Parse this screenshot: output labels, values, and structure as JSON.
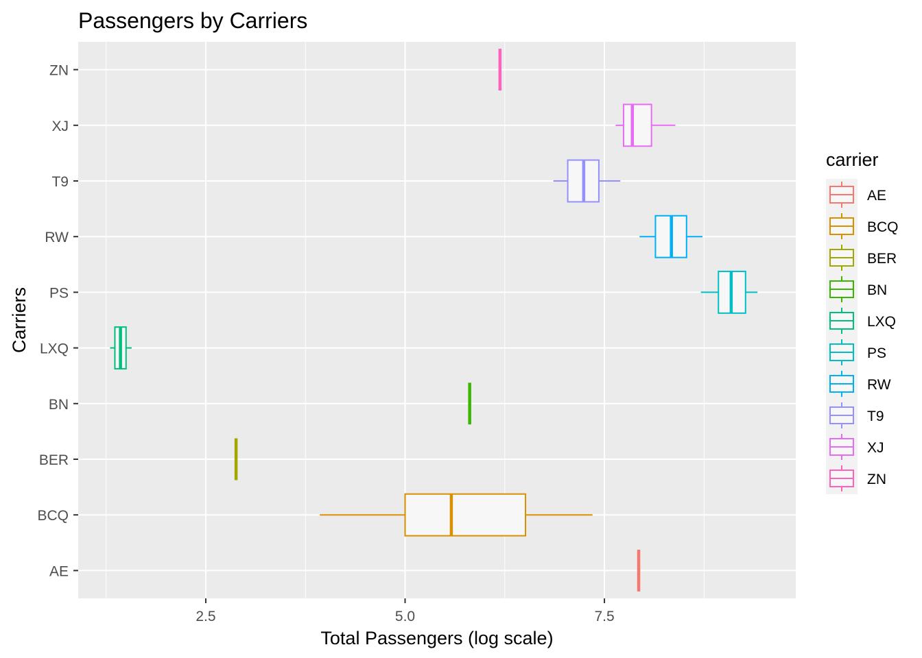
{
  "chart_data": {
    "type": "boxplot",
    "title": "Passengers by Carriers",
    "xlabel": "Total Passengers (log scale)",
    "ylabel": "Carriers",
    "xlim": [
      0.9,
      9.9
    ],
    "x_ticks": [
      2.5,
      5.0,
      7.5
    ],
    "x_tick_labels": [
      "2.5",
      "5.0",
      "7.5"
    ],
    "grid": true,
    "orientation": "horizontal",
    "legend": {
      "title": "carrier",
      "position": "right",
      "entries": [
        "AE",
        "BCQ",
        "BER",
        "BN",
        "LXQ",
        "PS",
        "RW",
        "T9",
        "XJ",
        "ZN"
      ]
    },
    "categories": [
      "AE",
      "BCQ",
      "BER",
      "BN",
      "LXQ",
      "PS",
      "RW",
      "T9",
      "XJ",
      "ZN"
    ],
    "series": [
      {
        "category": "AE",
        "min": 7.93,
        "q1": 7.93,
        "median": 7.93,
        "q3": 7.93,
        "max": 7.93,
        "color": "#F8766D"
      },
      {
        "category": "BCQ",
        "min": 3.93,
        "q1": 5.0,
        "median": 5.58,
        "q3": 6.51,
        "max": 7.35,
        "color": "#D89000"
      },
      {
        "category": "BER",
        "min": 2.88,
        "q1": 2.88,
        "median": 2.88,
        "q3": 2.88,
        "max": 2.88,
        "color": "#A3A500"
      },
      {
        "category": "BN",
        "min": 5.81,
        "q1": 5.81,
        "median": 5.81,
        "q3": 5.81,
        "max": 5.81,
        "color": "#39B600"
      },
      {
        "category": "LXQ",
        "min": 1.3,
        "q1": 1.36,
        "median": 1.43,
        "q3": 1.5,
        "max": 1.57,
        "color": "#00BF7D"
      },
      {
        "category": "PS",
        "min": 8.71,
        "q1": 8.93,
        "median": 9.09,
        "q3": 9.27,
        "max": 9.42,
        "color": "#00BFC4"
      },
      {
        "category": "RW",
        "min": 7.94,
        "q1": 8.14,
        "median": 8.34,
        "q3": 8.53,
        "max": 8.73,
        "color": "#00B0F6"
      },
      {
        "category": "T9",
        "min": 6.86,
        "q1": 7.04,
        "median": 7.24,
        "q3": 7.43,
        "max": 7.7,
        "color": "#9590FF"
      },
      {
        "category": "XJ",
        "min": 7.64,
        "q1": 7.74,
        "median": 7.85,
        "q3": 8.09,
        "max": 8.39,
        "color": "#E76BF3"
      },
      {
        "category": "ZN",
        "min": 6.19,
        "q1": 6.19,
        "median": 6.19,
        "q3": 6.19,
        "max": 6.19,
        "color": "#FF62BC"
      }
    ]
  }
}
